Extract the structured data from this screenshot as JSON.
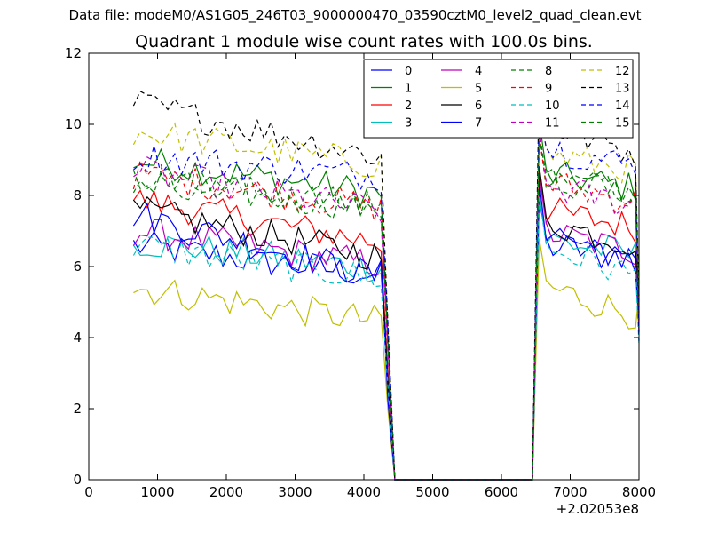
{
  "figure": {
    "suptitle": "Data file: modeM0/AS1G05_246T03_9000000470_03590cztM0_level2_quad_clean.evt"
  },
  "chart_data": {
    "type": "line",
    "title": "Quadrant 1 module wise count rates with 100.0s bins.",
    "xlabel": "",
    "ylabel": "",
    "x_offset_label": "+2.02053e8",
    "xlim": [
      0,
      8000
    ],
    "ylim": [
      0,
      12
    ],
    "xticks": [
      0,
      1000,
      2000,
      3000,
      4000,
      5000,
      6000,
      7000,
      8000
    ],
    "yticks": [
      0,
      2,
      4,
      6,
      8,
      10,
      12
    ],
    "grid": false,
    "legend_position": "top-right",
    "legend_columns": 4,
    "x_segment1": [
      650,
      750,
      850,
      950,
      1050,
      1150,
      1250,
      1350,
      1450,
      1550,
      1650,
      1750,
      1850,
      1950,
      2050,
      2150,
      2250,
      2350,
      2450,
      2550,
      2650,
      2750,
      2850,
      2950,
      3050,
      3150,
      3250,
      3350,
      3450,
      3550,
      3650,
      3750,
      3850,
      3950,
      4050,
      4150,
      4250,
      4350,
      4450
    ],
    "x_gap": [
      4550,
      4650,
      4750,
      4850,
      4950,
      5050,
      5150,
      5250,
      5350,
      5450,
      5550,
      5650,
      5750,
      5850,
      5950,
      6050,
      6150,
      6250,
      6350,
      6450
    ],
    "x_segment2": [
      6550,
      6650,
      6750,
      6850,
      6950,
      7050,
      7150,
      7250,
      7350,
      7450,
      7550,
      7650,
      7750,
      7850,
      7950,
      8000
    ],
    "series": [
      {
        "name": "0",
        "color": "#0000ff",
        "dash": "solid",
        "base1": 6.6,
        "slope1": -0.9,
        "base2": 6.6,
        "slope2": -0.3
      },
      {
        "name": "1",
        "color": "#008000",
        "dash": "solid",
        "base1": 9.0,
        "slope1": -1.0,
        "base2": 8.6,
        "slope2": -0.4
      },
      {
        "name": "2",
        "color": "#ff0000",
        "dash": "solid",
        "base1": 7.9,
        "slope1": -1.3,
        "base2": 7.6,
        "slope2": -0.5
      },
      {
        "name": "3",
        "color": "#00bfbf",
        "dash": "solid",
        "base1": 6.7,
        "slope1": -0.8,
        "base2": 6.8,
        "slope2": -0.5
      },
      {
        "name": "4",
        "color": "#bf00bf",
        "dash": "solid",
        "base1": 7.0,
        "slope1": -1.0,
        "base2": 7.0,
        "slope2": -0.6
      },
      {
        "name": "5",
        "color": "#bfbf00",
        "dash": "solid",
        "base1": 5.4,
        "slope1": -1.0,
        "base2": 5.5,
        "slope2": -0.9
      },
      {
        "name": "6",
        "color": "#000000",
        "dash": "solid",
        "base1": 7.6,
        "slope1": -1.4,
        "base2": 7.3,
        "slope2": -0.7
      },
      {
        "name": "7",
        "color": "#0000ff",
        "dash": "solid",
        "base1": 7.5,
        "slope1": -1.9,
        "base2": 7.2,
        "slope2": -1.3
      },
      {
        "name": "8",
        "color": "#008000",
        "dash": "dashed",
        "base1": 8.4,
        "slope1": -0.8,
        "base2": 8.5,
        "slope2": -0.4
      },
      {
        "name": "9",
        "color": "#ff0000",
        "dash": "dashed",
        "base1": 8.6,
        "slope1": -1.0,
        "base2": 8.4,
        "slope2": -0.6
      },
      {
        "name": "10",
        "color": "#00bfbf",
        "dash": "dashed",
        "base1": 6.6,
        "slope1": -1.0,
        "base2": 6.6,
        "slope2": -0.9
      },
      {
        "name": "11",
        "color": "#bf00bf",
        "dash": "dashed",
        "base1": 8.7,
        "slope1": -1.2,
        "base2": 8.3,
        "slope2": -0.6
      },
      {
        "name": "12",
        "color": "#bfbf00",
        "dash": "dashed",
        "base1": 9.8,
        "slope1": -1.0,
        "base2": 9.2,
        "slope2": -0.5
      },
      {
        "name": "13",
        "color": "#000000",
        "dash": "dashed",
        "base1": 10.6,
        "slope1": -1.6,
        "base2": 10.0,
        "slope2": -0.8
      },
      {
        "name": "14",
        "color": "#0000ff",
        "dash": "dashed",
        "base1": 9.1,
        "slope1": -0.6,
        "base2": 9.4,
        "slope2": -0.6
      },
      {
        "name": "15",
        "color": "#008000",
        "dash": "dashed",
        "base1": 8.5,
        "slope1": -0.9,
        "base2": 8.5,
        "slope2": -0.5
      }
    ]
  }
}
